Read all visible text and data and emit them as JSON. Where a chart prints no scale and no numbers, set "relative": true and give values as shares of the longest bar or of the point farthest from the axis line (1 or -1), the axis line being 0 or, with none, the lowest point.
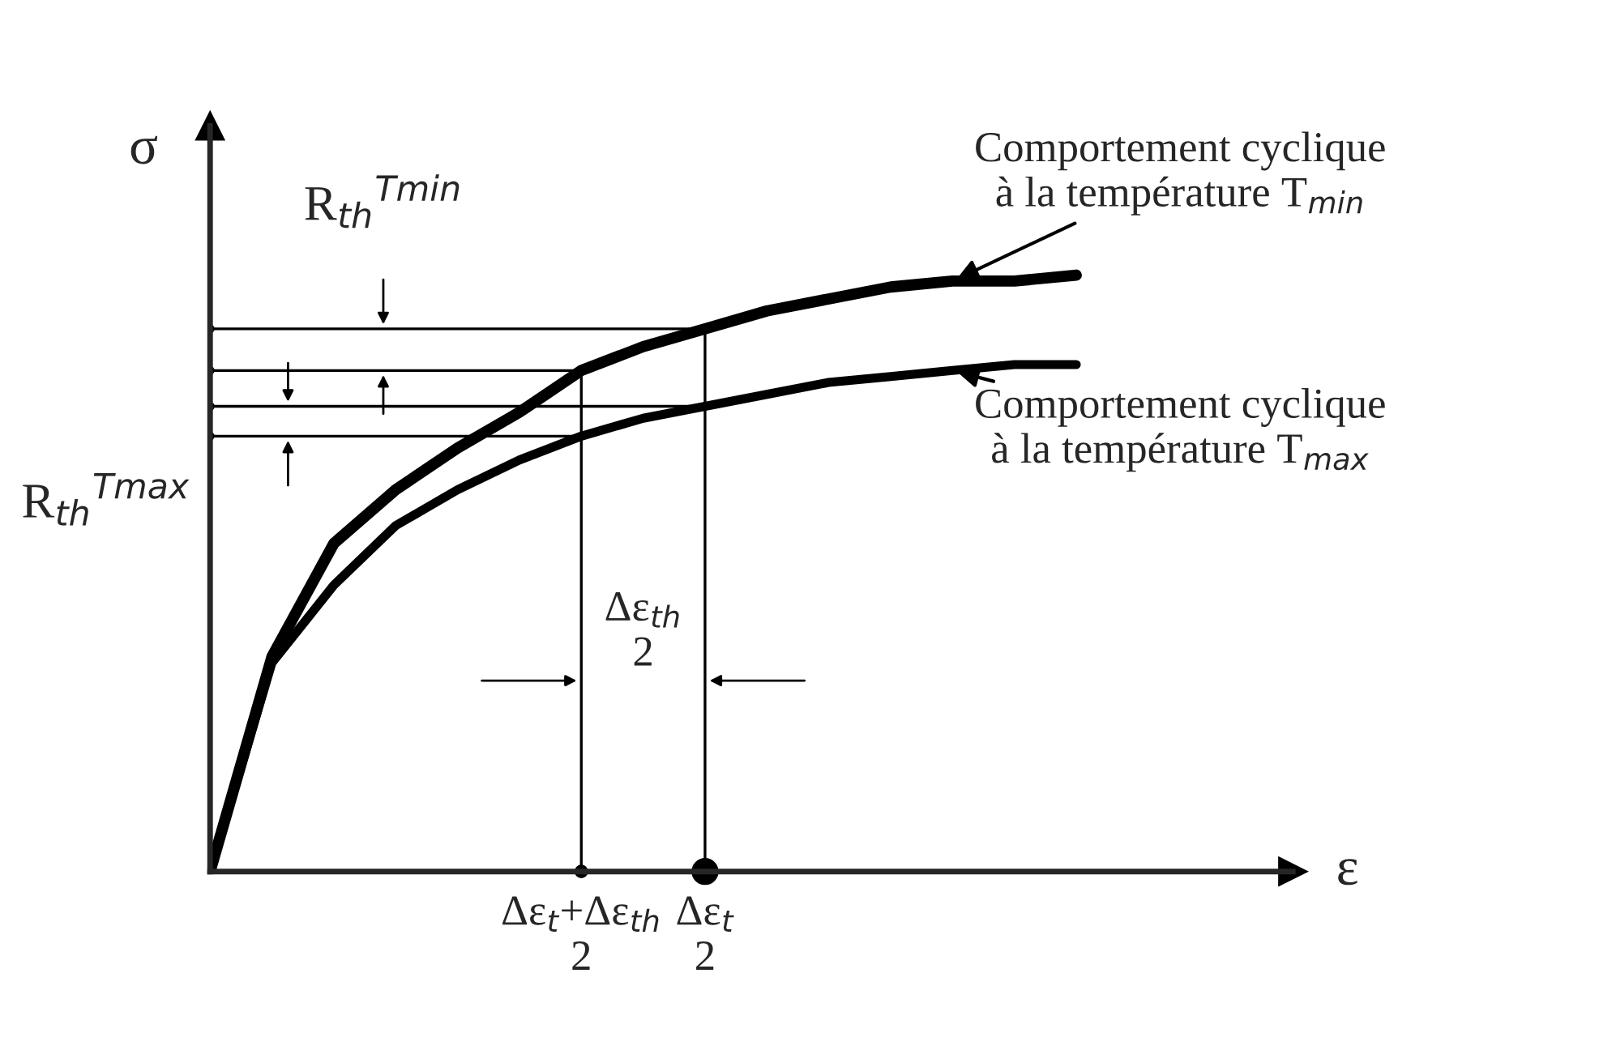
{
  "chart_data": {
    "type": "line",
    "relative": true,
    "xlabel": "ε",
    "ylabel": "σ",
    "marker": "none",
    "line_style": "solid",
    "categories": [
      null,
      null,
      null,
      null,
      null,
      null,
      null,
      null,
      null,
      null,
      null,
      null,
      null,
      null,
      null
    ],
    "series": [
      {
        "color": "#000000",
        "values": [
          0,
          0.36,
          0.55,
          0.64,
          0.71,
          0.77,
          0.84,
          0.88,
          0.91,
          0.94,
          0.96,
          0.98,
          0.99,
          0.99,
          1
        ]
      },
      {
        "color": "#000000",
        "values": [
          0,
          0.35,
          0.48,
          0.58,
          0.64,
          0.69,
          0.73,
          0.76,
          0.78,
          0.8,
          0.82,
          0.83,
          0.84,
          0.85,
          0.85
        ]
      }
    ],
    "ref_lines": [
      {
        "axis": "y",
        "value": 0.91
      },
      {
        "axis": "y",
        "value": 0.84
      },
      {
        "axis": "y",
        "value": 0.78
      },
      {
        "axis": "y",
        "value": 0.73
      }
    ],
    "annotations": [
      "Comportement cyclique\nà la température T$_{min}$",
      "Comportement cyclique\nà la température T$_{max}$",
      "R$_{th}$$^{Tmin}$",
      "R$_{th}$$^{Tmax}$",
      "Δε$_{th}$\n2",
      "Δε$_{t}$+Δε$_{th}$\n2",
      "Δε$_{t}$\n2"
    ]
  }
}
